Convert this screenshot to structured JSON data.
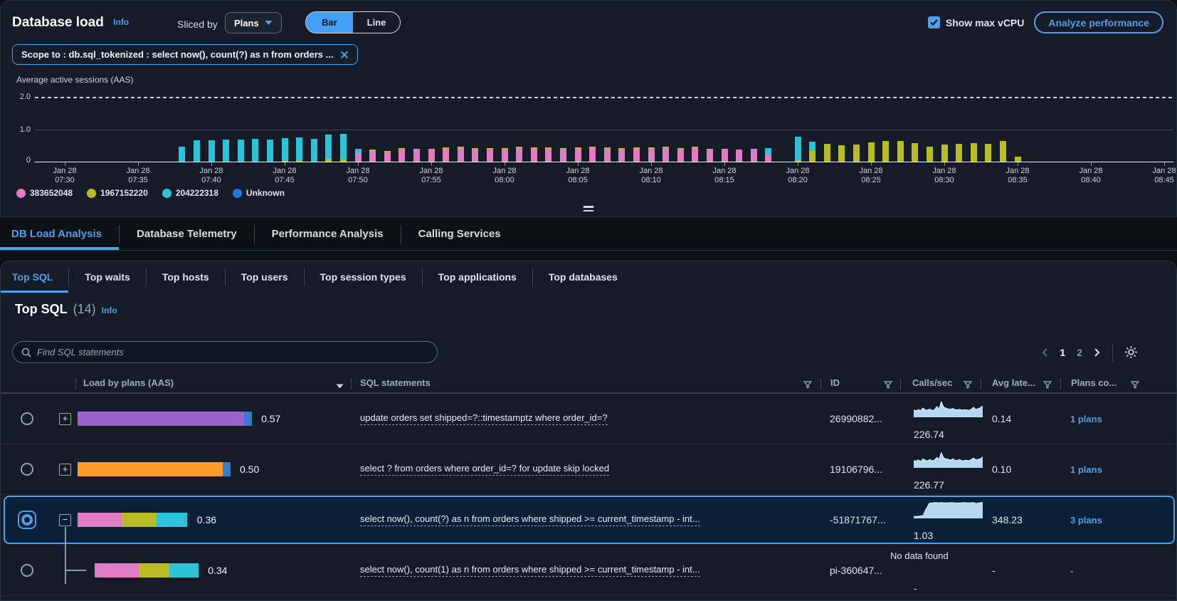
{
  "header": {
    "title": "Database load",
    "info_label": "Info",
    "sliced_by_label": "Sliced by",
    "slice_dropdown_value": "Plans",
    "view_toggle": {
      "options": [
        "Bar",
        "Line"
      ],
      "selected": "Bar"
    },
    "show_max_vcpu_label": "Show max vCPU",
    "show_max_vcpu_checked": true,
    "analyze_button_label": "Analyze performance"
  },
  "scope_filter": {
    "label": "Scope to : db.sql_tokenized : select now(), count(?) as n from orders ..."
  },
  "chart_data": {
    "type": "bar",
    "stacked": true,
    "title": "Average active sessions (AAS)",
    "ylabel": "Average active sessions (AAS)",
    "y_ticks": [
      "2.0",
      "1.0",
      "0"
    ],
    "ylim": [
      0,
      2.1
    ],
    "max_vcpu_line": 2.0,
    "grid": true,
    "legend_position": "bottom-left",
    "x_tick_date": "Jan 28",
    "x_tick_times": [
      "07:30",
      "07:35",
      "07:40",
      "07:45",
      "07:50",
      "07:55",
      "08:00",
      "08:05",
      "08:10",
      "08:15",
      "08:20",
      "08:25",
      "08:30",
      "08:35",
      "08:40",
      "08:45"
    ],
    "series": [
      {
        "name": "383652048",
        "color": "#e07cc3"
      },
      {
        "name": "1967152220",
        "color": "#b9bd23"
      },
      {
        "name": "204222318",
        "color": "#2bc3d8"
      },
      {
        "name": "Unknown",
        "color": "#2577d8"
      }
    ],
    "bars_format": "[minutes_after_07:30, aas_383652048, aas_1967152220, aas_204222318]",
    "bars": [
      [
        8,
        0,
        0,
        0.45
      ],
      [
        9,
        0,
        0,
        0.65
      ],
      [
        10,
        0,
        0,
        0.66
      ],
      [
        11,
        0,
        0,
        0.67
      ],
      [
        12,
        0,
        0,
        0.68
      ],
      [
        13,
        0,
        0,
        0.7
      ],
      [
        14,
        0,
        0,
        0.67
      ],
      [
        15,
        0,
        0.03,
        0.69
      ],
      [
        16,
        0,
        0.03,
        0.71
      ],
      [
        17,
        0,
        0,
        0.7
      ],
      [
        18,
        0,
        0.09,
        0.74
      ],
      [
        19,
        0,
        0.07,
        0.77
      ],
      [
        20,
        0.25,
        0.02,
        0.12
      ],
      [
        21,
        0.33,
        0.04,
        0
      ],
      [
        22,
        0.3,
        0.03,
        0
      ],
      [
        23,
        0.38,
        0.04,
        0
      ],
      [
        24,
        0.36,
        0.03,
        0
      ],
      [
        25,
        0.36,
        0.03,
        0
      ],
      [
        26,
        0.4,
        0.03,
        0
      ],
      [
        27,
        0.42,
        0.03,
        0
      ],
      [
        28,
        0.38,
        0.03,
        0
      ],
      [
        29,
        0.38,
        0.04,
        0
      ],
      [
        30,
        0.38,
        0.03,
        0
      ],
      [
        31,
        0.42,
        0.04,
        0
      ],
      [
        32,
        0.4,
        0.03,
        0
      ],
      [
        33,
        0.4,
        0.03,
        0
      ],
      [
        34,
        0.38,
        0.04,
        0
      ],
      [
        35,
        0.4,
        0.03,
        0
      ],
      [
        36,
        0.42,
        0.03,
        0
      ],
      [
        37,
        0.4,
        0.03,
        0
      ],
      [
        38,
        0.38,
        0.04,
        0
      ],
      [
        39,
        0.4,
        0.03,
        0
      ],
      [
        40,
        0.4,
        0.03,
        0
      ],
      [
        41,
        0.42,
        0.03,
        0
      ],
      [
        42,
        0.38,
        0.03,
        0
      ],
      [
        43,
        0.42,
        0.04,
        0
      ],
      [
        44,
        0.36,
        0.03,
        0
      ],
      [
        45,
        0.36,
        0.04,
        0
      ],
      [
        46,
        0.36,
        0.02,
        0
      ],
      [
        47,
        0.38,
        0.02,
        0
      ],
      [
        48,
        0.2,
        0,
        0.22
      ],
      [
        50,
        0,
        0.05,
        0.72
      ],
      [
        51,
        0,
        0.33,
        0.28
      ],
      [
        52,
        0,
        0.55,
        0
      ],
      [
        53,
        0,
        0.5,
        0
      ],
      [
        54,
        0,
        0.52,
        0
      ],
      [
        55,
        0,
        0.58,
        0
      ],
      [
        56,
        0,
        0.62,
        0
      ],
      [
        57,
        0,
        0.64,
        0
      ],
      [
        58,
        0,
        0.57,
        0
      ],
      [
        59,
        0,
        0.45,
        0
      ],
      [
        60,
        0,
        0.52,
        0
      ],
      [
        61,
        0,
        0.55,
        0
      ],
      [
        62,
        0,
        0.56,
        0
      ],
      [
        63,
        0,
        0.55,
        0
      ],
      [
        64,
        0,
        0.62,
        0
      ],
      [
        65,
        0,
        0.15,
        0
      ]
    ]
  },
  "main_tabs": {
    "items": [
      "DB Load Analysis",
      "Database Telemetry",
      "Performance Analysis",
      "Calling Services"
    ],
    "active": "DB Load Analysis"
  },
  "sub_tabs": {
    "items": [
      "Top SQL",
      "Top waits",
      "Top hosts",
      "Top users",
      "Top session types",
      "Top applications",
      "Top databases"
    ],
    "active": "Top SQL"
  },
  "top_sql": {
    "title": "Top SQL",
    "count": "(14)",
    "info_label": "Info",
    "search_placeholder": "Find SQL statements",
    "pagination": {
      "pages": [
        "1",
        "2"
      ],
      "current": "1"
    },
    "table": {
      "columns": [
        {
          "label": "Load by plans (AAS)"
        },
        {
          "label": "SQL statements"
        },
        {
          "label": "ID"
        },
        {
          "label": "Calls/sec"
        },
        {
          "label": "Avg late..."
        },
        {
          "label": "Plans co..."
        }
      ],
      "rows": [
        {
          "selected": false,
          "expander": "plus",
          "load_total": "0.57",
          "load_segments": [
            {
              "color": "#9a62cc",
              "value": 0.545
            },
            {
              "color": "#2e7dd1",
              "value": 0.025
            }
          ],
          "sql": "update orders set shipped=?::timestamptz where order_id=?",
          "id": "26990882...",
          "calls_per_sec": "226.74",
          "sparkline": [
            0.4,
            0.34,
            0.42,
            0.35,
            0.52,
            0.4,
            0.38,
            0.45,
            0.36,
            0.4,
            0.62,
            0.48,
            0.95,
            0.6,
            0.52,
            0.46,
            0.44,
            0.5,
            0.42,
            0.4,
            0.44,
            0.38,
            0.42,
            0.4,
            0.37,
            0.44,
            0.58,
            0.42,
            0.48,
            0.55,
            0.66
          ],
          "avg_latency": "0.14",
          "plans_count": "1 plans"
        },
        {
          "selected": false,
          "expander": "plus",
          "load_total": "0.50",
          "load_segments": [
            {
              "color": "#f89c2e",
              "value": 0.475
            },
            {
              "color": "#2e7dd1",
              "value": 0.025
            }
          ],
          "sql": "select ? from orders where order_id=? for update skip locked",
          "id": "19106796...",
          "calls_per_sec": "226.77",
          "sparkline": [
            0.38,
            0.36,
            0.44,
            0.33,
            0.5,
            0.42,
            0.36,
            0.46,
            0.38,
            0.42,
            0.6,
            0.5,
            0.92,
            0.58,
            0.5,
            0.48,
            0.42,
            0.52,
            0.4,
            0.42,
            0.46,
            0.36,
            0.4,
            0.42,
            0.38,
            0.46,
            0.56,
            0.44,
            0.46,
            0.52,
            0.64
          ],
          "avg_latency": "0.10",
          "plans_count": "1 plans"
        },
        {
          "selected": true,
          "expander": "minus",
          "load_total": "0.36",
          "load_segments": [
            {
              "color": "#e07cc3",
              "value": 0.145
            },
            {
              "color": "#b9bd23",
              "value": 0.115
            },
            {
              "color": "#2bc3d8",
              "value": 0.1
            }
          ],
          "sql": "select now(), count(?) as n from orders where shipped >= current_timestamp - int...",
          "id": "-51871767...",
          "calls_per_sec": "1.03",
          "sparkline": [
            0.04,
            0.04,
            0.06,
            0.1,
            0.55,
            0.92,
            0.95,
            0.96,
            0.95,
            0.96,
            0.95,
            0.95,
            0.96,
            0.95,
            0.94,
            0.95,
            0.96,
            0.95,
            0.95,
            0.96,
            0.9,
            0.95,
            0.98
          ],
          "avg_latency": "348.23",
          "plans_count": "3 plans"
        },
        {
          "selected": false,
          "expander": "child",
          "load_total": "0.34",
          "load_segments": [
            {
              "color": "#e07cc3",
              "value": 0.145
            },
            {
              "color": "#b9bd23",
              "value": 0.1
            },
            {
              "color": "#2bc3d8",
              "value": 0.095
            }
          ],
          "sql": "select now(), count(1) as n from orders where shipped >= current_timestamp - int...",
          "id": "pi-360647...",
          "no_data_text": "No data found",
          "calls_per_sec": "-",
          "sparkline": null,
          "avg_latency": "-",
          "plans_count": "-"
        }
      ]
    }
  },
  "colors": {
    "accent_blue": "#539fe5",
    "panel_bg": "#151c27",
    "selected_row_bg": "#0a2036",
    "sparkline_fill": "#b5d8f1"
  }
}
